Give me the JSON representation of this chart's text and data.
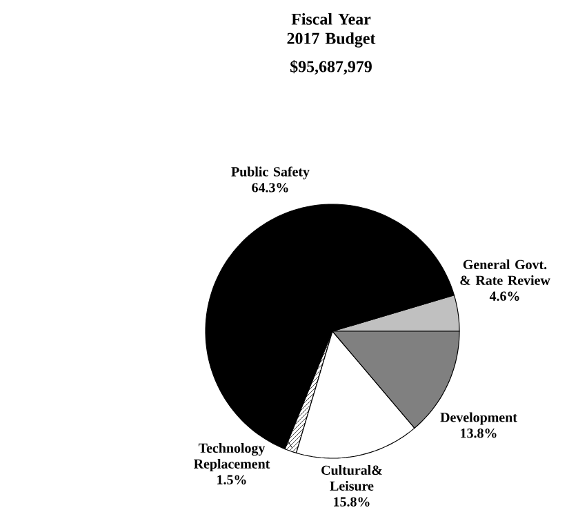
{
  "chart_data": {
    "type": "pie",
    "title": "Fiscal Year 2017 Budget",
    "subtitle": "$95,687,979",
    "categories": [
      "General Govt. & Rate Review",
      "Public Safety",
      "Technology Replacement",
      "Cultural& Leisure",
      "Development"
    ],
    "values": [
      4.6,
      64.3,
      1.5,
      15.8,
      13.8
    ],
    "value_labels": [
      "4.6%",
      "64.3%",
      "1.5%",
      "15.8%",
      "13.8%"
    ],
    "colors": [
      "#c0c0c0",
      "#000000",
      "#ffffff",
      "#ffffff",
      "#808080"
    ]
  }
}
